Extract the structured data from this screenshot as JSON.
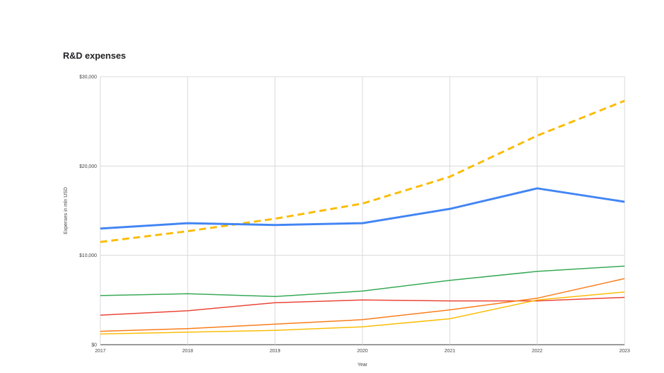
{
  "chart_data": {
    "type": "line",
    "title": "R&D expenses",
    "xlabel": "Year",
    "ylabel": "Expenses in mln USD",
    "categories": [
      "2017",
      "2018",
      "2019",
      "2020",
      "2021",
      "2022",
      "2023"
    ],
    "y_ticks": [
      {
        "value": 0,
        "label": "$0"
      },
      {
        "value": 10000,
        "label": "$10,000"
      },
      {
        "value": 20000,
        "label": "$20,000"
      },
      {
        "value": 30000,
        "label": "$30,000"
      }
    ],
    "ylim": [
      0,
      30000
    ],
    "grid": true,
    "legend": "none",
    "series": [
      {
        "color": "#fbbc04",
        "style": "dashed",
        "thick": true,
        "values": [
          11500,
          12700,
          14100,
          15800,
          18800,
          23400,
          27300
        ]
      },
      {
        "color": "#4285f4",
        "style": "solid",
        "thick": true,
        "values": [
          13000,
          13600,
          13400,
          13600,
          15200,
          17500,
          16000
        ]
      },
      {
        "color": "#34a853",
        "style": "solid",
        "thick": false,
        "values": [
          5500,
          5700,
          5400,
          6000,
          7200,
          8200,
          8800
        ]
      },
      {
        "color": "#ea4335",
        "style": "solid",
        "thick": false,
        "values": [
          3300,
          3800,
          4700,
          5000,
          4900,
          4900,
          5300
        ]
      },
      {
        "color": "#fa7b17",
        "style": "solid",
        "thick": false,
        "values": [
          1500,
          1800,
          2300,
          2800,
          3900,
          5200,
          7400
        ]
      },
      {
        "color": "#fbbc04",
        "style": "solid",
        "thick": false,
        "values": [
          1200,
          1400,
          1600,
          2000,
          2900,
          5000,
          5900
        ]
      }
    ]
  }
}
